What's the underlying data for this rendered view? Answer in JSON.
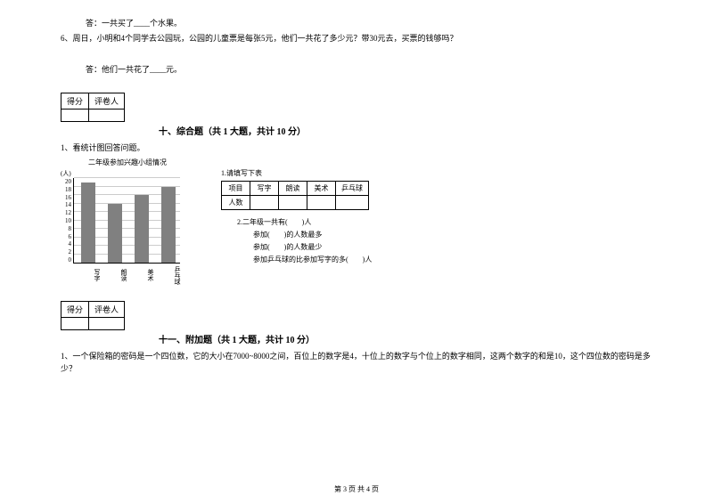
{
  "q5_answer": "答：一共买了____个水果。",
  "q6": "6、周日，小明和4个同学去公园玩，公园的儿童票是每张5元，他们一共花了多少元？带30元去，买票的钱够吗？",
  "q6_answer": "答：他们一共花了____元。",
  "score_labels": {
    "score": "得分",
    "grader": "评卷人"
  },
  "section10": {
    "title": "十、综合题（共 1 大题，共计 10 分）",
    "q1": "1、看统计图回答问题。",
    "chart": {
      "title": "二年级参加兴趣小组情况",
      "y_unit": "(人)",
      "y_ticks": [
        "20",
        "18",
        "16",
        "14",
        "12",
        "10",
        "8",
        "6",
        "4",
        "2",
        "0"
      ],
      "categories": [
        "写字",
        "朗读",
        "美术",
        "乒乓球"
      ],
      "values": [
        19,
        14,
        16,
        18
      ],
      "y_max": 20,
      "bar_color": "#808080",
      "grid_color": "#cccccc"
    },
    "table": {
      "caption": "1.请填写下表",
      "header": [
        "项目",
        "写字",
        "朗读",
        "美术",
        "乒乓球"
      ],
      "row_label": "人数"
    },
    "sub": {
      "a": "2.二年级一共有(　　)人",
      "b": "参加(　　)的人数最多",
      "c": "参加(　　)的人数最少",
      "d": "参加乒乓球的比参加写字的多(　　)人"
    }
  },
  "section11": {
    "title": "十一、附加题（共 1 大题，共计 10 分）",
    "q1": "1、一个保险箱的密码是一个四位数，它的大小在7000~8000之间，百位上的数字是4，十位上的数字与个位上的数字相同，这两个数字的和是10，这个四位数的密码是多少？"
  },
  "footer": "第 3 页 共 4 页"
}
